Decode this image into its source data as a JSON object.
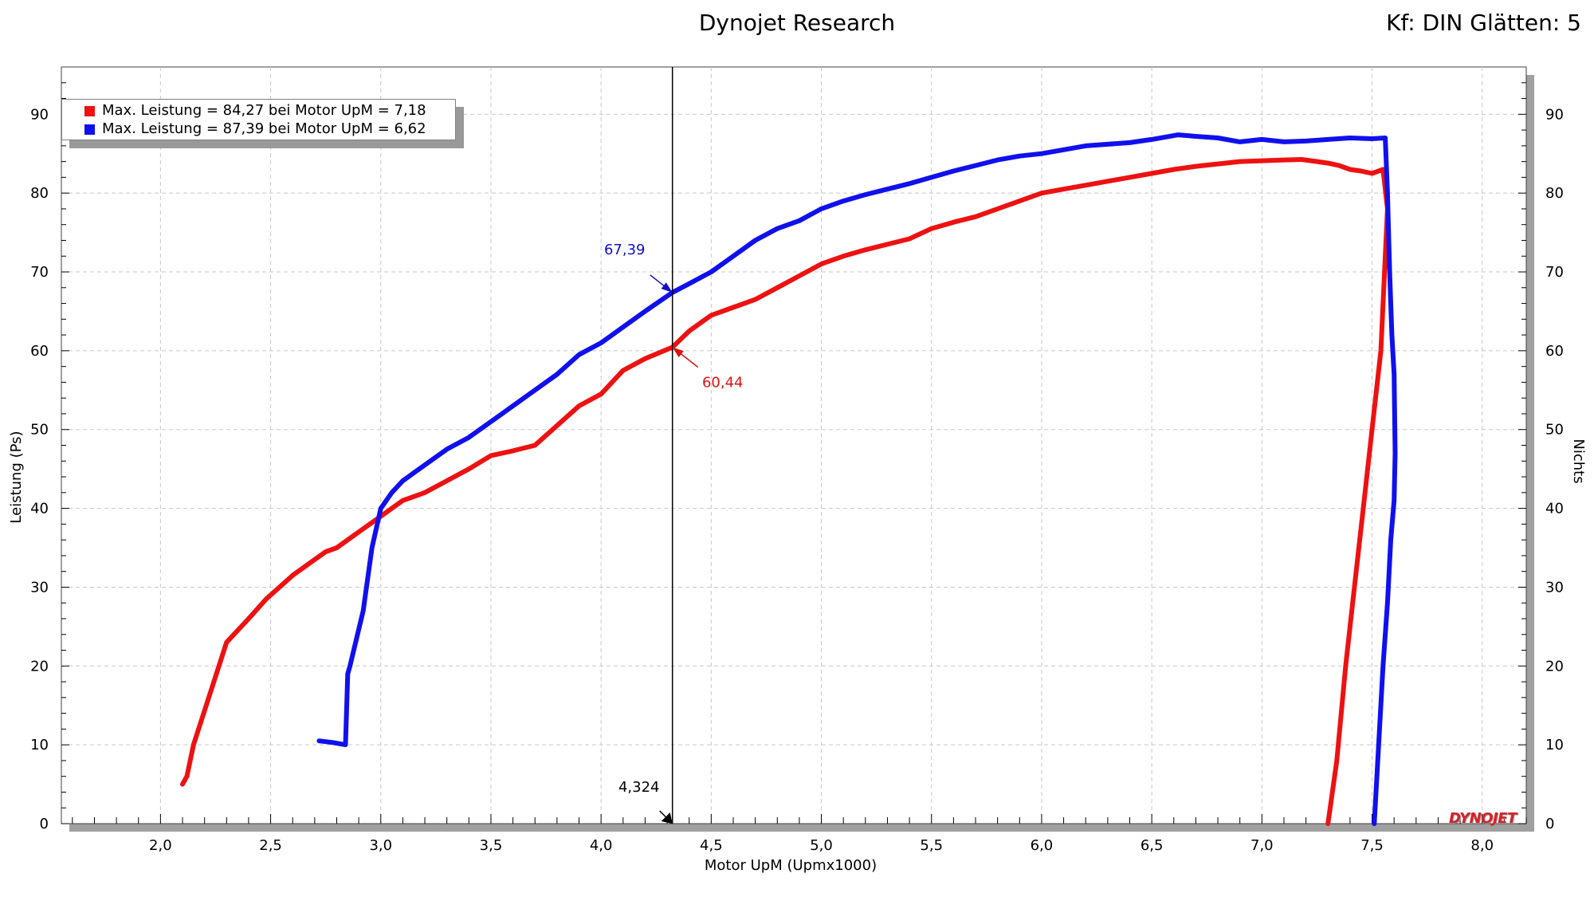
{
  "header": {
    "title": "Dynojet Research",
    "correction": "Kf: DIN Glätten: 5"
  },
  "brand": "DYNOJET",
  "legend": [
    {
      "label": "Max. Leistung = 84,27 bei Motor UpM = 7,18",
      "color": "#ee1111"
    },
    {
      "label": "Max. Leistung = 87,39 bei Motor UpM = 6,62",
      "color": "#1010ee"
    }
  ],
  "chart_data": {
    "type": "line",
    "title": "Dynojet Research",
    "xlabel": "Motor UpM (Upmx1000)",
    "ylabel": "Leistung (Ps)",
    "y2label": "Nichts",
    "xlim": [
      1.55,
      8.2
    ],
    "ylim": [
      0,
      96
    ],
    "x_ticks": [
      2.0,
      2.5,
      3.0,
      3.5,
      4.0,
      4.5,
      5.0,
      5.5,
      6.0,
      6.5,
      7.0,
      7.5,
      8.0
    ],
    "x_tick_labels": [
      "2,0",
      "2,5",
      "3,0",
      "3,5",
      "4,0",
      "4,5",
      "5,0",
      "5,5",
      "6,0",
      "6,5",
      "7,0",
      "7,5",
      "8,0"
    ],
    "y_ticks": [
      0,
      10,
      20,
      30,
      40,
      50,
      60,
      70,
      80,
      90
    ],
    "grid": true,
    "cursor": {
      "x": 4.324,
      "label": "4,324"
    },
    "annotations": [
      {
        "text": "67,39",
        "x": 4.324,
        "y": 67.39,
        "color": "#1010cc",
        "series": "blue"
      },
      {
        "text": "60,44",
        "x": 4.324,
        "y": 60.44,
        "color": "#dd1111",
        "series": "red"
      }
    ],
    "series": [
      {
        "color": "#ee1111",
        "x": [
          2.1,
          2.12,
          2.15,
          2.3,
          2.4,
          2.48,
          2.56,
          2.6,
          2.65,
          2.7,
          2.75,
          2.8,
          2.9,
          3.0,
          3.1,
          3.2,
          3.3,
          3.4,
          3.5,
          3.6,
          3.7,
          3.8,
          3.9,
          4.0,
          4.1,
          4.2,
          4.324,
          4.4,
          4.5,
          4.6,
          4.7,
          4.8,
          4.9,
          5.0,
          5.1,
          5.2,
          5.3,
          5.4,
          5.5,
          5.6,
          5.7,
          5.8,
          5.9,
          6.0,
          6.1,
          6.2,
          6.3,
          6.4,
          6.5,
          6.6,
          6.7,
          6.8,
          6.9,
          7.0,
          7.1,
          7.18,
          7.25,
          7.3,
          7.35,
          7.4,
          7.45,
          7.5,
          7.55,
          7.57,
          7.56,
          7.54,
          7.5,
          7.46,
          7.42,
          7.38,
          7.34,
          7.3
        ],
        "y": [
          5.0,
          6.0,
          10.0,
          23.0,
          26.0,
          28.5,
          30.5,
          31.5,
          32.5,
          33.5,
          34.5,
          35.0,
          37.0,
          39.0,
          41.0,
          42.0,
          43.5,
          45.0,
          46.7,
          47.3,
          48.0,
          50.5,
          53.0,
          54.5,
          57.5,
          59.0,
          60.44,
          62.5,
          64.5,
          65.5,
          66.5,
          68.0,
          69.5,
          71.0,
          72.0,
          72.8,
          73.5,
          74.2,
          75.5,
          76.3,
          77.0,
          78.0,
          79.0,
          80.0,
          80.5,
          81.0,
          81.5,
          82.0,
          82.5,
          83.0,
          83.4,
          83.7,
          84.0,
          84.1,
          84.2,
          84.27,
          84.0,
          83.8,
          83.5,
          83.0,
          82.8,
          82.5,
          83.0,
          78.0,
          72.0,
          60.0,
          50.0,
          40.0,
          30.0,
          20.0,
          8.0,
          0.0
        ]
      },
      {
        "color": "#1010ee",
        "x": [
          2.72,
          2.78,
          2.84,
          2.85,
          2.86,
          2.92,
          2.96,
          3.0,
          3.05,
          3.1,
          3.15,
          3.2,
          3.3,
          3.4,
          3.45,
          3.5,
          3.6,
          3.7,
          3.8,
          3.9,
          4.0,
          4.1,
          4.2,
          4.324,
          4.4,
          4.5,
          4.6,
          4.7,
          4.8,
          4.9,
          5.0,
          5.1,
          5.2,
          5.3,
          5.4,
          5.5,
          5.6,
          5.7,
          5.8,
          5.9,
          6.0,
          6.1,
          6.2,
          6.3,
          6.4,
          6.5,
          6.62,
          6.7,
          6.8,
          6.9,
          7.0,
          7.1,
          7.2,
          7.3,
          7.4,
          7.5,
          7.56,
          7.57,
          7.58,
          7.59,
          7.6,
          7.605,
          7.6,
          7.585,
          7.57,
          7.55,
          7.53,
          7.51
        ],
        "y": [
          10.5,
          10.3,
          10.0,
          19.0,
          20.0,
          27.0,
          35.0,
          40.0,
          42.0,
          43.5,
          44.5,
          45.5,
          47.5,
          49.0,
          50.0,
          51.0,
          53.0,
          55.0,
          57.0,
          59.5,
          61.0,
          63.0,
          65.0,
          67.39,
          68.5,
          70.0,
          72.0,
          74.0,
          75.5,
          76.5,
          78.0,
          79.0,
          79.8,
          80.5,
          81.2,
          82.0,
          82.8,
          83.5,
          84.2,
          84.7,
          85.0,
          85.5,
          86.0,
          86.2,
          86.4,
          86.8,
          87.39,
          87.2,
          87.0,
          86.5,
          86.8,
          86.5,
          86.6,
          86.8,
          87.0,
          86.9,
          87.0,
          80.0,
          70.0,
          62.0,
          57.0,
          47.0,
          41.0,
          36.0,
          28.0,
          20.0,
          10.0,
          0.0
        ]
      }
    ]
  }
}
